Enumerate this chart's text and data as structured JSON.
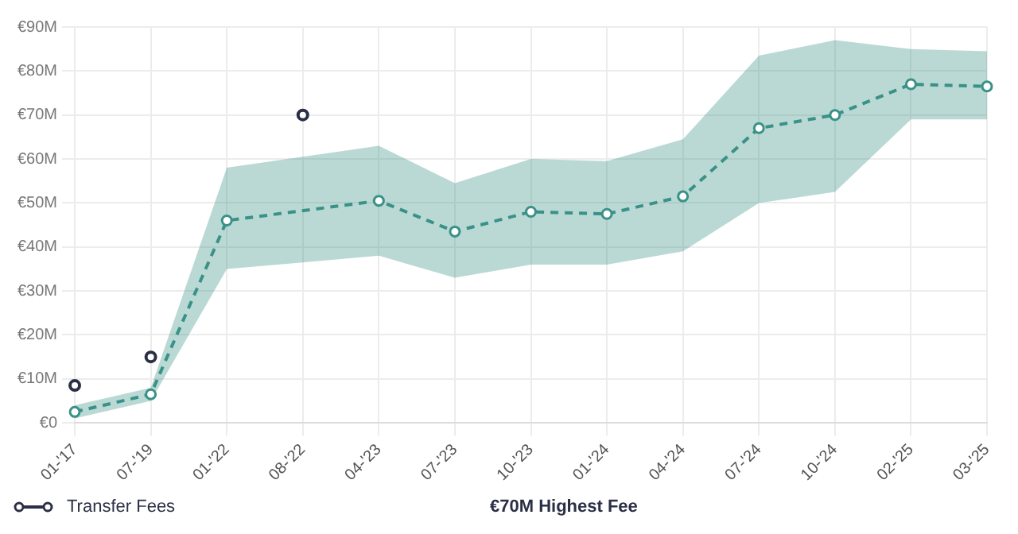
{
  "chart_data": {
    "type": "line",
    "categories": [
      "01-'17",
      "07-'19",
      "01-'22",
      "08-'22",
      "04-'23",
      "07-'23",
      "10-'23",
      "01-'24",
      "04-'24",
      "07-'24",
      "10-'24",
      "02-'25",
      "03-'25"
    ],
    "series": [
      {
        "color": "#3a9188",
        "line_style": "dashed",
        "marker": "circle",
        "values": [
          2.5,
          6.5,
          46,
          null,
          50.5,
          43.5,
          48,
          47.5,
          51.5,
          67,
          70,
          77,
          76.5
        ],
        "lower": [
          1,
          5,
          35,
          36.5,
          38,
          33,
          36,
          36,
          39,
          50,
          52.5,
          69,
          69
        ],
        "upper": [
          4,
          8,
          58,
          60.5,
          63,
          54.5,
          60,
          59.5,
          64.5,
          83.5,
          87,
          85,
          84.5
        ]
      },
      {
        "type": "scatter",
        "name": "Transfer Fees",
        "color": "#2b2f45",
        "marker": "circle",
        "values": [
          8.5,
          15,
          null,
          70,
          null,
          null,
          null,
          null,
          null,
          null,
          null,
          null,
          null
        ]
      }
    ],
    "ylim": [
      0,
      90
    ],
    "yticks": [
      {
        "value": 0,
        "label": "€0"
      },
      {
        "value": 10,
        "label": "€10M"
      },
      {
        "value": 20,
        "label": "€20M"
      },
      {
        "value": 30,
        "label": "€30M"
      },
      {
        "value": 40,
        "label": "€40M"
      },
      {
        "value": 50,
        "label": "€50M"
      },
      {
        "value": 60,
        "label": "€60M"
      },
      {
        "value": 70,
        "label": "€70M"
      },
      {
        "value": 80,
        "label": "€80M"
      },
      {
        "value": 90,
        "label": "€90M"
      }
    ],
    "grid": true,
    "legend": "bottom left",
    "annotations": [
      "€70M Highest Fee"
    ]
  }
}
